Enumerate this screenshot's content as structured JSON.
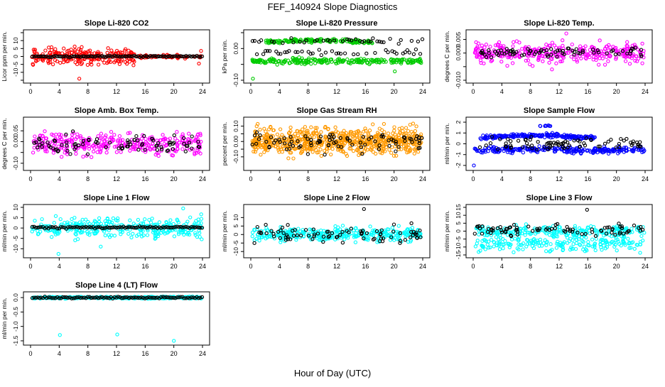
{
  "figure": {
    "title": "FEF_140924  Slope Diagnostics",
    "xlabel": "Hour of Day (UTC)"
  },
  "chart_data": [
    {
      "type": "scatter",
      "title": "Slope Li-820 CO2",
      "ylabel": "Licor ppm per min.",
      "xlim": [
        0,
        24
      ],
      "ylim": [
        -15,
        15
      ],
      "yticks": [
        -15,
        -10,
        -5,
        0,
        5,
        10,
        15
      ],
      "ytick_labels": [
        "",
        "-10",
        "-5",
        "0",
        "5",
        "10",
        ""
      ],
      "x_ticks": [
        0,
        4,
        8,
        12,
        16,
        20,
        24
      ],
      "series": [
        {
          "color": "#ff0000",
          "pattern": "cluster",
          "center": 0,
          "spread": 3.5,
          "n": 230,
          "xmax": 14.5
        },
        {
          "color": "#ff0000",
          "pattern": "cluster",
          "center": 0,
          "spread": 0.8,
          "n": 60,
          "xmin": 14.5,
          "outliers": [
            [
              6.8,
              -14
            ],
            [
              23.5,
              -4.5
            ],
            [
              23.8,
              3.5
            ]
          ]
        },
        {
          "color": "#000000",
          "pattern": "flat",
          "center": 0,
          "spread": 0.3,
          "n": 96
        }
      ]
    },
    {
      "type": "scatter",
      "title": "Slope Li-820 Pressure",
      "ylabel": "kPa per min.",
      "xlim": [
        0,
        24
      ],
      "ylim": [
        -0.1,
        0.05
      ],
      "yticks": [
        -0.1,
        -0.05,
        0,
        0.05
      ],
      "ytick_labels": [
        "-0.10",
        "",
        "0.00",
        ""
      ],
      "x_ticks": [
        0,
        4,
        8,
        12,
        16,
        20,
        24
      ],
      "series": [
        {
          "color": "#00cc00",
          "pattern": "band",
          "center": -0.04,
          "spread": 0.006,
          "n": 240,
          "outliers": [
            [
              0.3,
              -0.095
            ],
            [
              20.1,
              -0.072
            ]
          ]
        },
        {
          "color": "#00cc00",
          "pattern": "arc",
          "center": 0.02,
          "spread": 0.006,
          "n": 150,
          "xmin": 2,
          "xmax": 17
        },
        {
          "color": "#000000",
          "pattern": "mixed",
          "center": 0.005,
          "spread": 0.018,
          "n": 80
        }
      ]
    },
    {
      "type": "scatter",
      "title": "Slope Li-820 Temp.",
      "ylabel": "degrees C per min.",
      "xlim": [
        0,
        24
      ],
      "ylim": [
        -0.01,
        0.0075
      ],
      "yticks": [
        -0.01,
        -0.005,
        0,
        0.005
      ],
      "ytick_labels": [
        "-0.010",
        "",
        "0.000",
        "0.005"
      ],
      "x_ticks": [
        0,
        4,
        8,
        12,
        16,
        20,
        24
      ],
      "series": [
        {
          "color": "#ff00ff",
          "pattern": "cluster",
          "center": 0,
          "spread": 0.0025,
          "n": 330,
          "outliers": [
            [
              13,
              0.0072
            ],
            [
              11,
              -0.006
            ]
          ]
        },
        {
          "color": "#000000",
          "pattern": "cluster",
          "center": 0.0003,
          "spread": 0.0012,
          "n": 80
        }
      ]
    },
    {
      "type": "scatter",
      "title": "Slope Amb. Box Temp.",
      "ylabel": "degrees C per min.",
      "xlim": [
        0,
        24
      ],
      "ylim": [
        -0.12,
        0.1
      ],
      "yticks": [
        -0.1,
        -0.05,
        0,
        0.05
      ],
      "ytick_labels": [
        "-0.10",
        "",
        "0.00",
        "0.05"
      ],
      "x_ticks": [
        0,
        4,
        8,
        12,
        16,
        20,
        24
      ],
      "series": [
        {
          "color": "#ff00ff",
          "pattern": "cluster",
          "center": -0.01,
          "spread": 0.035,
          "n": 330
        },
        {
          "color": "#000000",
          "pattern": "cluster",
          "center": -0.01,
          "spread": 0.03,
          "n": 90
        }
      ]
    },
    {
      "type": "scatter",
      "title": "Slope Gas Stream RH",
      "ylabel": "percent per min.",
      "xlim": [
        0,
        24
      ],
      "ylim": [
        -0.17,
        0.14
      ],
      "yticks": [
        -0.1,
        -0.05,
        0,
        0.05,
        0.1
      ],
      "ytick_labels": [
        "-0.10",
        "",
        "0.00",
        "",
        "0.10"
      ],
      "x_ticks": [
        0,
        4,
        8,
        12,
        16,
        20,
        24
      ],
      "series": [
        {
          "color": "#ff9900",
          "pattern": "cluster",
          "center": 0,
          "spread": 0.06,
          "n": 650
        },
        {
          "color": "#000000",
          "pattern": "cluster",
          "center": 0,
          "spread": 0.045,
          "n": 90
        }
      ]
    },
    {
      "type": "scatter",
      "title": "Slope Sample Flow",
      "ylabel": "ml/min per min.",
      "xlim": [
        0,
        24
      ],
      "ylim": [
        -2.2,
        2.2
      ],
      "yticks": [
        -2,
        -1,
        0,
        1,
        2
      ],
      "ytick_labels": [
        "-2",
        "-1",
        "0",
        "1",
        "2"
      ],
      "x_ticks": [
        0,
        4,
        8,
        12,
        16,
        20,
        24
      ],
      "series": [
        {
          "color": "#0000ff",
          "pattern": "band",
          "center": -0.55,
          "spread": 0.22,
          "n": 260,
          "outliers": [
            [
              0.1,
              -2.0
            ]
          ]
        },
        {
          "color": "#0000ff",
          "pattern": "arc",
          "center": 0.55,
          "spread": 0.22,
          "n": 200,
          "xmin": 1,
          "xmax": 17
        },
        {
          "color": "#0000ff",
          "pattern": "cluster",
          "center": 1.7,
          "spread": 0.12,
          "n": 8,
          "xmin": 9,
          "xmax": 11
        },
        {
          "color": "#000000",
          "pattern": "cluster",
          "center": 0,
          "spread": 0.45,
          "n": 80
        }
      ]
    },
    {
      "type": "scatter",
      "title": "Slope Line 1 Flow",
      "ylabel": "ml/min per min.",
      "xlim": [
        0,
        24
      ],
      "ylim": [
        -13,
        10
      ],
      "yticks": [
        -10,
        -5,
        0,
        5,
        10
      ],
      "ytick_labels": [
        "-10",
        "-5",
        "0",
        "5",
        "10"
      ],
      "x_ticks": [
        0,
        4,
        8,
        12,
        16,
        20,
        24
      ],
      "series": [
        {
          "color": "#00ffff",
          "pattern": "cluster",
          "center": 0,
          "spread": 3.2,
          "n": 330,
          "outliers": [
            [
              3.9,
              -12.5
            ],
            [
              9.8,
              -9
            ],
            [
              21.3,
              9.5
            ]
          ]
        },
        {
          "color": "#000000",
          "pattern": "flat",
          "center": 0.3,
          "spread": 0.3,
          "n": 96
        }
      ]
    },
    {
      "type": "scatter",
      "title": "Slope Line 2 Flow",
      "ylabel": "ml/min per min.",
      "xlim": [
        0,
        24
      ],
      "ylim": [
        -12,
        16
      ],
      "yticks": [
        -10,
        -5,
        0,
        5,
        10
      ],
      "ytick_labels": [
        "-10",
        "-5",
        "0",
        "5",
        "10"
      ],
      "x_ticks": [
        0,
        4,
        8,
        12,
        16,
        20,
        24
      ],
      "series": [
        {
          "color": "#00ffff",
          "pattern": "cluster",
          "center": 0,
          "spread": 3.0,
          "n": 330
        },
        {
          "color": "#000000",
          "pattern": "cluster",
          "center": 0,
          "spread": 3.2,
          "n": 85,
          "outliers": [
            [
              15.8,
              15
            ]
          ]
        }
      ]
    },
    {
      "type": "scatter",
      "title": "Slope Line 3 Flow",
      "ylabel": "ml/min per min.",
      "xlim": [
        0,
        24
      ],
      "ylim": [
        -15,
        15
      ],
      "yticks": [
        -15,
        -10,
        -5,
        0,
        5,
        10,
        15
      ],
      "ytick_labels": [
        "-15",
        "-10",
        "-5",
        "0",
        "5",
        "10",
        "15"
      ],
      "x_ticks": [
        0,
        4,
        8,
        12,
        16,
        20,
        24
      ],
      "series": [
        {
          "color": "#00ffff",
          "pattern": "cluster",
          "center": 0,
          "spread": 2.5,
          "n": 220
        },
        {
          "color": "#00ffff",
          "pattern": "band",
          "center": -8,
          "spread": 3,
          "n": 200
        },
        {
          "color": "#000000",
          "pattern": "cluster",
          "center": 1,
          "spread": 2.5,
          "n": 85,
          "outliers": [
            [
              15.9,
              13.5
            ]
          ]
        }
      ]
    },
    {
      "type": "scatter",
      "title": "Slope Line 4 (LT) Flow",
      "ylabel": "ml/min per min.",
      "xlim": [
        0,
        24
      ],
      "ylim": [
        -1.55,
        0.1
      ],
      "yticks": [
        -1.5,
        -1,
        -0.5,
        0
      ],
      "ytick_labels": [
        "-1.5",
        "-1.0",
        "-0.5",
        "0.0"
      ],
      "x_ticks": [
        0,
        4,
        8,
        12,
        16,
        20,
        24
      ],
      "series": [
        {
          "color": "#00ffff",
          "pattern": "band",
          "center": 0,
          "spread": 0.025,
          "n": 330,
          "outliers": [
            [
              4.1,
              -1.3
            ],
            [
              12.1,
              -1.28
            ],
            [
              20,
              -1.5
            ]
          ]
        },
        {
          "color": "#000000",
          "pattern": "flat",
          "center": 0,
          "spread": 0.02,
          "n": 96
        }
      ]
    }
  ]
}
